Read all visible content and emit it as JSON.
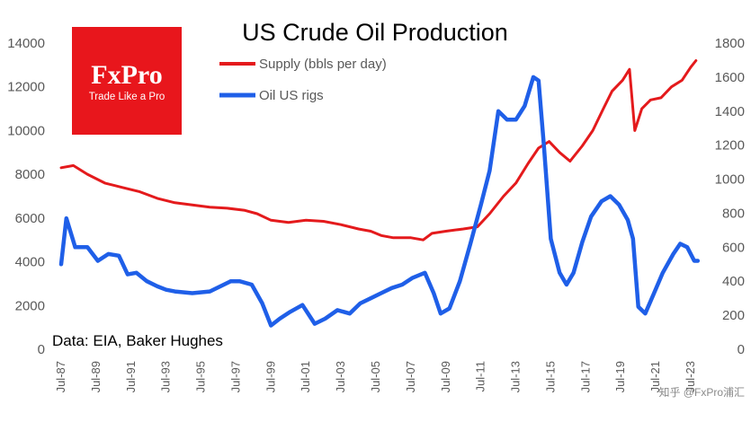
{
  "chart_data": {
    "type": "line",
    "title": "US Crude Oil Production",
    "source_note": "Data: EIA, Baker Hughes",
    "watermark": "知乎 @FxPro浦汇",
    "logo": {
      "brand": "FxPro",
      "tagline": "Trade Like a Pro",
      "color": "#E8161C"
    },
    "legend_position": "top-center",
    "grid": false,
    "x_ticks": [
      "Jul-87",
      "Jul-89",
      "Jul-91",
      "Jul-93",
      "Jul-95",
      "Jul-97",
      "Jul-99",
      "Jul-01",
      "Jul-03",
      "Jul-05",
      "Jul-07",
      "Jul-09",
      "Jul-11",
      "Jul-13",
      "Jul-15",
      "Jul-17",
      "Jul-19",
      "Jul-21",
      "Jul-23"
    ],
    "y_left": {
      "ticks": [
        0,
        2000,
        4000,
        6000,
        8000,
        10000,
        12000,
        14000
      ],
      "lim": [
        0,
        14000
      ]
    },
    "y_right": {
      "ticks": [
        0,
        200,
        400,
        600,
        800,
        1000,
        1200,
        1400,
        1600,
        1800
      ],
      "lim": [
        0,
        1800
      ]
    },
    "series": [
      {
        "name": "Supply (bbls per day)",
        "color": "#E41A1C",
        "axis": "left",
        "x": [
          1987.5,
          1988.2,
          1989,
          1990,
          1991,
          1992,
          1993,
          1994,
          1995,
          1996,
          1997,
          1998,
          1998.7,
          1999.5,
          2000.5,
          2001.5,
          2002.5,
          2003.5,
          2004.5,
          2005.2,
          2005.8,
          2006.5,
          2007.5,
          2008.2,
          2008.7,
          2009.5,
          2010.5,
          2011.3,
          2012,
          2012.8,
          2013.5,
          2014.2,
          2014.8,
          2015.4,
          2016,
          2016.6,
          2017.3,
          2017.9,
          2018.5,
          2019,
          2019.6,
          2020,
          2020.3,
          2020.7,
          2021.2,
          2021.8,
          2022.4,
          2023,
          2023.5,
          2023.8
        ],
        "y": [
          8300,
          8400,
          8000,
          7600,
          7400,
          7200,
          6900,
          6700,
          6600,
          6500,
          6450,
          6350,
          6200,
          5900,
          5800,
          5900,
          5850,
          5700,
          5500,
          5400,
          5200,
          5100,
          5100,
          5000,
          5300,
          5400,
          5500,
          5600,
          6200,
          7000,
          7600,
          8500,
          9200,
          9500,
          9000,
          8600,
          9300,
          10000,
          11000,
          11800,
          12300,
          12800,
          10000,
          11000,
          11400,
          11500,
          12000,
          12300,
          12900,
          13200
        ]
      },
      {
        "name": "Oil US rigs",
        "color": "#1F5FE8",
        "axis": "right",
        "x": [
          1987.5,
          1987.8,
          1988.3,
          1989,
          1989.6,
          1990.2,
          1990.8,
          1991.3,
          1991.8,
          1992.4,
          1993,
          1993.5,
          1994,
          1995,
          1996,
          1997.2,
          1997.7,
          1998.4,
          1999,
          1999.5,
          2000,
          2000.6,
          2001.3,
          2002,
          2002.6,
          2003.3,
          2004,
          2004.6,
          2005.2,
          2005.8,
          2006.4,
          2007,
          2007.6,
          2008.3,
          2008.8,
          2009.2,
          2009.7,
          2010.3,
          2010.9,
          2011.5,
          2012,
          2012.5,
          2013,
          2013.5,
          2014,
          2014.5,
          2014.8,
          2015.1,
          2015.5,
          2016,
          2016.4,
          2016.8,
          2017.3,
          2017.8,
          2018.4,
          2018.9,
          2019.4,
          2019.9,
          2020.2,
          2020.5,
          2020.9,
          2021.4,
          2021.9,
          2022.5,
          2022.9,
          2023.3,
          2023.7,
          2023.9
        ],
        "y": [
          500,
          770,
          600,
          600,
          520,
          560,
          550,
          440,
          450,
          400,
          370,
          350,
          340,
          330,
          340,
          400,
          400,
          380,
          270,
          140,
          180,
          220,
          260,
          150,
          180,
          230,
          210,
          270,
          300,
          330,
          360,
          380,
          420,
          450,
          330,
          210,
          240,
          400,
          620,
          850,
          1050,
          1400,
          1350,
          1350,
          1430,
          1600,
          1580,
          1200,
          650,
          450,
          380,
          450,
          630,
          780,
          870,
          900,
          850,
          760,
          650,
          250,
          210,
          330,
          450,
          560,
          620,
          600,
          520,
          520
        ]
      }
    ]
  }
}
